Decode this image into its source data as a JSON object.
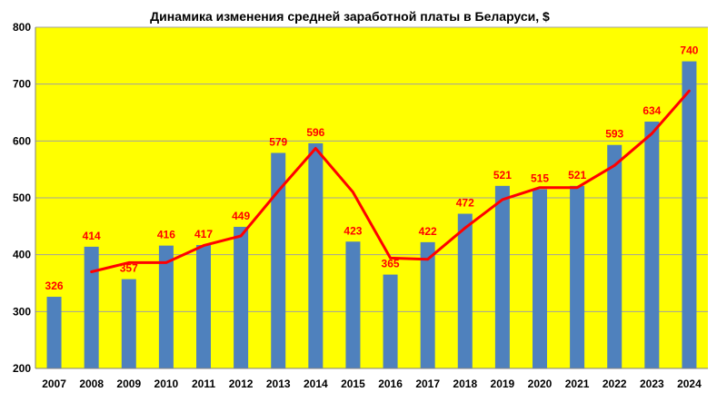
{
  "chart_data": {
    "type": "bar",
    "title": "Динамика изменения средней заработной платы в Беларуси, $",
    "categories": [
      "2007",
      "2008",
      "2009",
      "2010",
      "2011",
      "2012",
      "2013",
      "2014",
      "2015",
      "2016",
      "2017",
      "2018",
      "2019",
      "2020",
      "2021",
      "2022",
      "2023",
      "2024"
    ],
    "series": [
      {
        "type": "bar",
        "values": [
          326,
          414,
          357,
          416,
          417,
          449,
          579,
          596,
          423,
          365,
          422,
          472,
          521,
          515,
          521,
          593,
          634,
          740
        ]
      },
      {
        "type": "line",
        "values": [
          null,
          370,
          386,
          386,
          416,
          433,
          512,
          587,
          510,
          394,
          392,
          447,
          497,
          518,
          518,
          557,
          613,
          688
        ]
      }
    ],
    "ylim": [
      200,
      800
    ],
    "yticks": [
      200,
      300,
      400,
      500,
      600,
      700,
      800
    ],
    "grid": true,
    "data_labels": true,
    "colors": {
      "plot_background": "#ffff00",
      "bar": "#4f81bd",
      "line": "#ff0000",
      "data_label": "#ff0000",
      "grid": "#a0a0a0"
    }
  }
}
